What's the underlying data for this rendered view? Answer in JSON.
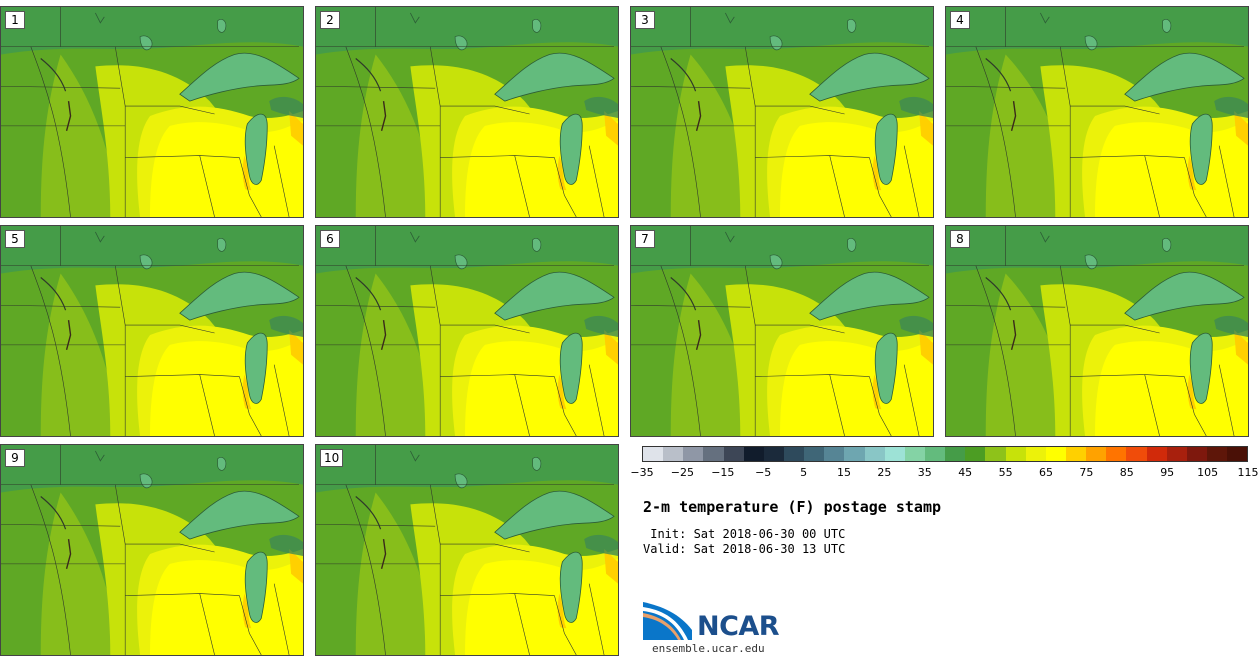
{
  "title": "2-m temperature (F) postage stamp",
  "init_text": " Init: Sat 2018-06-30 00 UTC",
  "valid_text": "Valid: Sat 2018-06-30 13 UTC",
  "logo": {
    "name": "NCAR",
    "url": "ensemble.ucar.edu"
  },
  "members": [
    {
      "label": "1"
    },
    {
      "label": "2"
    },
    {
      "label": "3"
    },
    {
      "label": "4"
    },
    {
      "label": "5"
    },
    {
      "label": "6"
    },
    {
      "label": "7"
    },
    {
      "label": "8"
    },
    {
      "label": "9"
    },
    {
      "label": "10"
    }
  ],
  "colorbar": {
    "ticks": [
      "−35",
      "−25",
      "−15",
      "−5",
      "5",
      "15",
      "25",
      "35",
      "45",
      "55",
      "65",
      "75",
      "85",
      "95",
      "105",
      "115"
    ],
    "min": -35,
    "max": 120,
    "step": 5,
    "colors": [
      "#dfe3ea",
      "#b9bfc9",
      "#8f97a6",
      "#65707f",
      "#3d4656",
      "#111c2c",
      "#1b2a3b",
      "#2e4a5c",
      "#3f6677",
      "#568595",
      "#6ea6b0",
      "#89c6c6",
      "#9de2d6",
      "#84d3a5",
      "#63bb7d",
      "#459c48",
      "#4c9d23",
      "#8ec21a",
      "#c7e20a",
      "#ecf20a",
      "#ffff00",
      "#ffd000",
      "#ffa200",
      "#ff7400",
      "#f04c0a",
      "#d12a0a",
      "#a8200d",
      "#7e180d",
      "#5e1609",
      "#4a1006"
    ]
  },
  "field_colors": {
    "cold": "#459c48",
    "cool": "#5fa825",
    "mild": "#8ec21a",
    "warm": "#c7e20a",
    "warmer": "#ecf20a",
    "hot": "#ffff00",
    "hotspot": "#ffd000",
    "lake": "#63bb7d",
    "lake_dark": "#3f8a52"
  }
}
